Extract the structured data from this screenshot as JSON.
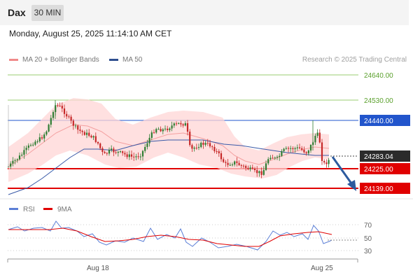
{
  "header": {
    "symbol": "Dax",
    "timeframe": "30 MIN"
  },
  "datetime": "Monday, August 25, 2025 11:14:10 AM CET",
  "legend_top": [
    {
      "label": "MA 20 + Bollinger Bands",
      "color": "#f08a8a"
    },
    {
      "label": "MA 50",
      "color": "#2f4f8f"
    }
  ],
  "credit": "Research © 2025 Trading Central",
  "legend_bottom": [
    {
      "label": "RSI",
      "color": "#5b7fd6"
    },
    {
      "label": "9MA",
      "color": "#e00000"
    }
  ],
  "chart_data": {
    "type": "candlestick",
    "timeframe": "30 MIN",
    "x_ticks": [
      "Aug 18",
      "Aug 25"
    ],
    "levels": [
      {
        "label": "24640.00",
        "value": 24640,
        "style": "resistance-green"
      },
      {
        "label": "24530.00",
        "value": 24530,
        "style": "resistance-green"
      },
      {
        "label": "24440.00",
        "value": 24440,
        "style": "pivot-blue"
      },
      {
        "label": "24283.04",
        "value": 24283.04,
        "style": "last-price"
      },
      {
        "label": "24225.00",
        "value": 24225,
        "style": "support-red"
      },
      {
        "label": "24139.00",
        "value": 24139,
        "style": "support-red"
      }
    ],
    "rsi_ticks": [
      70,
      50,
      30
    ],
    "rsi_series": [
      {
        "name": "RSI",
        "color": "#5b7fd6"
      },
      {
        "name": "9MA",
        "color": "#e00000"
      }
    ],
    "colors": {
      "up": "#2e7d32",
      "down": "#c62828",
      "band": "#ffd6d6",
      "ma20": "#f4a0a0",
      "ma50": "#3a5aa8",
      "red_line": "#e00000",
      "blue_line": "#2255cc",
      "green_line": "#9acd70"
    }
  }
}
